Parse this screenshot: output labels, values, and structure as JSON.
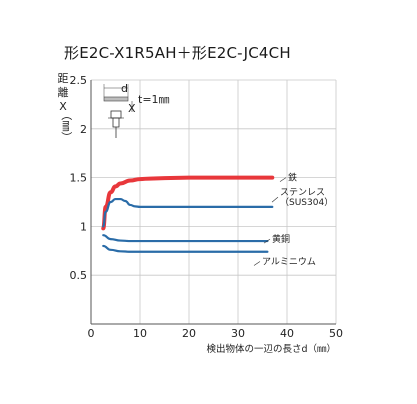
{
  "chart_data": {
    "type": "line",
    "title": "形E2C-X1R5AH＋形E2C-JC4CH",
    "ylabel": "距離X（㎜）",
    "xlabel": "検出物体の一辺の長さd（㎜）",
    "xlim": [
      0,
      50
    ],
    "ylim": [
      0,
      2.5
    ],
    "xticks": [
      "0",
      "10",
      "20",
      "30",
      "40",
      "50"
    ],
    "yticks": [
      "0.5",
      "1",
      "1.5",
      "2",
      "2.5"
    ],
    "grid": true,
    "inset_note": "t=1㎜",
    "inset_marks": [
      "d",
      "X"
    ],
    "series": [
      {
        "name": "鉄",
        "color": "#e8373b",
        "x": [
          2.5,
          3,
          4,
          5,
          6,
          8,
          10,
          12,
          15,
          20,
          25,
          30,
          37
        ],
        "y": [
          0.98,
          1.2,
          1.35,
          1.41,
          1.44,
          1.47,
          1.485,
          1.49,
          1.495,
          1.5,
          1.5,
          1.5,
          1.5
        ]
      },
      {
        "name": "ステンレス（SUS304）",
        "color": "#2a6ca8",
        "x": [
          2.5,
          3,
          4,
          5,
          6,
          7,
          8,
          9,
          10,
          12,
          15,
          20,
          30,
          37
        ],
        "y": [
          1.0,
          1.15,
          1.25,
          1.28,
          1.28,
          1.26,
          1.22,
          1.205,
          1.2,
          1.2,
          1.2,
          1.2,
          1.2,
          1.2
        ]
      },
      {
        "name": "黄銅",
        "color": "#2a6ca8",
        "x": [
          2.5,
          4,
          6,
          8,
          10,
          15,
          20,
          30,
          36
        ],
        "y": [
          0.91,
          0.87,
          0.855,
          0.85,
          0.85,
          0.85,
          0.85,
          0.85,
          0.85
        ]
      },
      {
        "name": "アルミニウム",
        "color": "#2a6ca8",
        "x": [
          2.5,
          4,
          6,
          8,
          10,
          15,
          20,
          30,
          36
        ],
        "y": [
          0.8,
          0.76,
          0.745,
          0.74,
          0.74,
          0.74,
          0.74,
          0.74,
          0.74
        ]
      }
    ]
  }
}
